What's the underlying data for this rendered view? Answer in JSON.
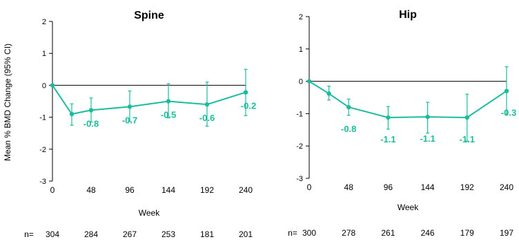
{
  "ylabel": "Mean % BMD Change (95% CI)",
  "n_prefix": "n=",
  "accent_color": "#1ABC9C",
  "chart_data": [
    {
      "type": "line",
      "title": "Spine",
      "xlabel": "Week",
      "x_ticks": [
        0,
        48,
        96,
        144,
        192,
        240
      ],
      "y_ticks": [
        -3,
        -2,
        -1,
        0,
        1,
        2
      ],
      "ylim": [
        -3,
        2
      ],
      "xlim": [
        0,
        240
      ],
      "grid": false,
      "reference_line_y": 0,
      "points": [
        {
          "x": 0,
          "y": 0,
          "lo": 0,
          "hi": 0
        },
        {
          "x": 24,
          "y": -0.9,
          "lo": -1.25,
          "hi": -0.58
        },
        {
          "x": 48,
          "y": -0.78,
          "lo": -1.15,
          "hi": -0.4
        },
        {
          "x": 96,
          "y": -0.67,
          "lo": -1.13,
          "hi": -0.18
        },
        {
          "x": 144,
          "y": -0.5,
          "lo": -1.02,
          "hi": 0.05
        },
        {
          "x": 192,
          "y": -0.6,
          "lo": -1.28,
          "hi": 0.1
        },
        {
          "x": 240,
          "y": -0.22,
          "lo": -0.95,
          "hi": 0.5
        }
      ],
      "data_labels": [
        {
          "text": "-0.8",
          "x": 48,
          "y": -0.78
        },
        {
          "text": "-0.7",
          "x": 96,
          "y": -0.67
        },
        {
          "text": "-0.5",
          "x": 144,
          "y": -0.5
        },
        {
          "text": "-0.6",
          "x": 192,
          "y": -0.6
        },
        {
          "text": "-0.2",
          "x": 240,
          "y": -0.22
        }
      ],
      "n_values": [
        "304",
        "284",
        "267",
        "253",
        "181",
        "201"
      ]
    },
    {
      "type": "line",
      "title": "Hip",
      "xlabel": "Week",
      "x_ticks": [
        0,
        48,
        96,
        144,
        192,
        240
      ],
      "y_ticks": [
        -3,
        -2,
        -1,
        0,
        1,
        2
      ],
      "ylim": [
        -3,
        2
      ],
      "xlim": [
        0,
        240
      ],
      "grid": false,
      "reference_line_y": 0,
      "points": [
        {
          "x": 0,
          "y": 0,
          "lo": 0,
          "hi": 0
        },
        {
          "x": 24,
          "y": -0.38,
          "lo": -0.58,
          "hi": -0.15
        },
        {
          "x": 48,
          "y": -0.8,
          "lo": -1.05,
          "hi": -0.55
        },
        {
          "x": 96,
          "y": -1.12,
          "lo": -1.48,
          "hi": -0.78
        },
        {
          "x": 144,
          "y": -1.1,
          "lo": -1.6,
          "hi": -0.65
        },
        {
          "x": 192,
          "y": -1.12,
          "lo": -1.85,
          "hi": -0.4
        },
        {
          "x": 240,
          "y": -0.3,
          "lo": -1.02,
          "hi": 0.45
        }
      ],
      "data_labels": [
        {
          "text": "-0.8",
          "x": 48,
          "y": -0.8
        },
        {
          "text": "-1.1",
          "x": 96,
          "y": -1.12
        },
        {
          "text": "-1.1",
          "x": 144,
          "y": -1.1
        },
        {
          "text": "-1.1",
          "x": 192,
          "y": -1.12
        },
        {
          "text": "-0.3",
          "x": 240,
          "y": -0.3
        }
      ],
      "n_values": [
        "300",
        "278",
        "261",
        "246",
        "179",
        "197"
      ]
    }
  ]
}
